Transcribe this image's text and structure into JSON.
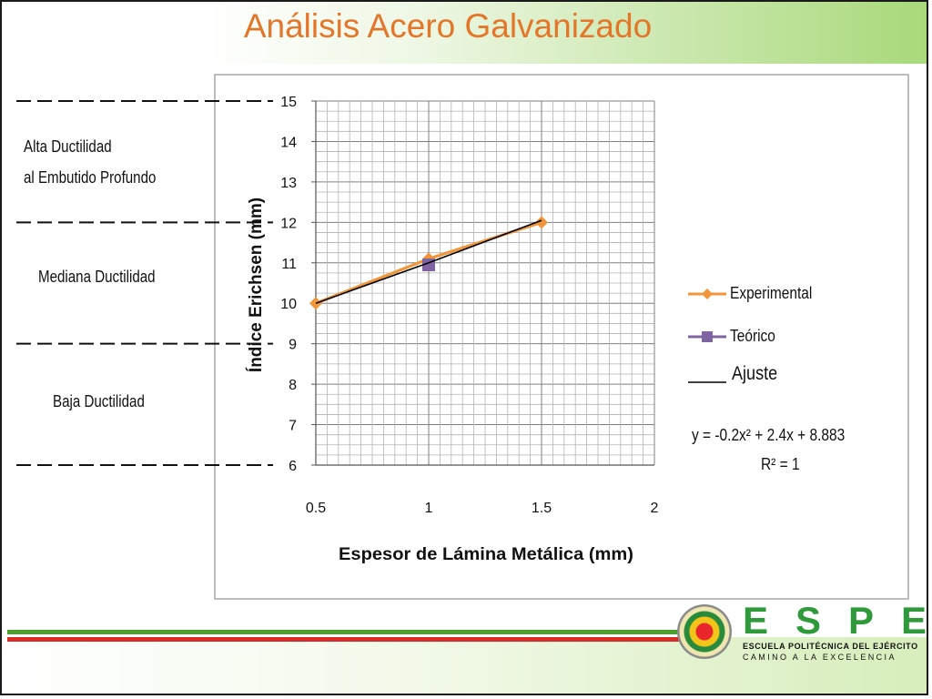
{
  "slide": {
    "title": "Análisis Acero Galvanizado"
  },
  "zones": {
    "alta_line1": "Alta Ductilidad",
    "alta_line2": "al Embutido Profundo",
    "mediana": "Mediana Ductilidad",
    "baja": "Baja Ductilidad"
  },
  "chart_data": {
    "type": "line",
    "xlabel": "Espesor de Lámina Metálica (mm)",
    "ylabel": "Índice Erichsen (mm)",
    "xlim": [
      0.5,
      2
    ],
    "ylim": [
      6,
      15
    ],
    "xticks": [
      0.5,
      1,
      1.5,
      2
    ],
    "yticks": [
      6,
      7,
      8,
      9,
      10,
      11,
      12,
      13,
      14,
      15
    ],
    "grid": true,
    "legend_position": "right",
    "series": [
      {
        "name": "Experimental",
        "color": "#f0953a",
        "marker": "diamond",
        "x": [
          0.5,
          1,
          1.5
        ],
        "y": [
          10.0,
          11.1,
          12.0
        ]
      },
      {
        "name": "Teórico",
        "color": "#8064a2",
        "marker": "square",
        "x": [
          1
        ],
        "y": [
          10.95
        ]
      },
      {
        "name": "Ajuste",
        "color": "#000000",
        "marker": "none",
        "x": [
          0.5,
          1,
          1.5
        ],
        "y": [
          10.0,
          11.0,
          12.05
        ]
      }
    ],
    "equation": "y = -0.2x² + 2.4x + 8.883",
    "r_squared": "R² = 1"
  },
  "logo": {
    "letters": "ESPE",
    "school": "ESCUELA POLITÉCNICA DEL EJÉRCITO",
    "motto": "CAMINO A LA EXCELENCIA"
  },
  "colors": {
    "title": "#e4762a",
    "brand_green": "#2e9a3a",
    "stripe_red": "#d92a26"
  }
}
